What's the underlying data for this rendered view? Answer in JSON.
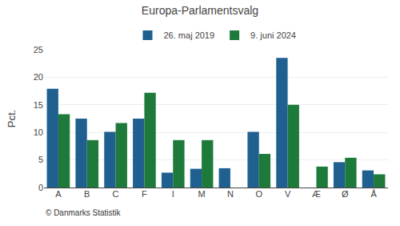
{
  "chart_data": {
    "type": "bar",
    "title": "Europa-Parlamentsvalg",
    "ylabel": "Pct.",
    "categories": [
      "A",
      "B",
      "C",
      "F",
      "I",
      "M",
      "N",
      "O",
      "V",
      "Æ",
      "Ø",
      "Å"
    ],
    "series": [
      {
        "name": "26. maj 2019",
        "color": "#1f6090",
        "values": [
          17.9,
          12.5,
          10.1,
          12.5,
          2.7,
          3.4,
          3.5,
          10.1,
          23.5,
          0.0,
          4.6,
          3.1
        ]
      },
      {
        "name": "9. juni 2024",
        "color": "#1e7a3a",
        "values": [
          13.3,
          8.6,
          11.7,
          17.2,
          8.6,
          8.6,
          0.0,
          6.1,
          15.0,
          3.8,
          5.4,
          2.4
        ]
      }
    ],
    "ylim": [
      0,
      25
    ],
    "yticks": [
      0,
      5,
      10,
      15,
      20,
      25
    ],
    "grid": true,
    "legend": "top",
    "annotations": [
      "© Danmarks Statistik"
    ]
  }
}
